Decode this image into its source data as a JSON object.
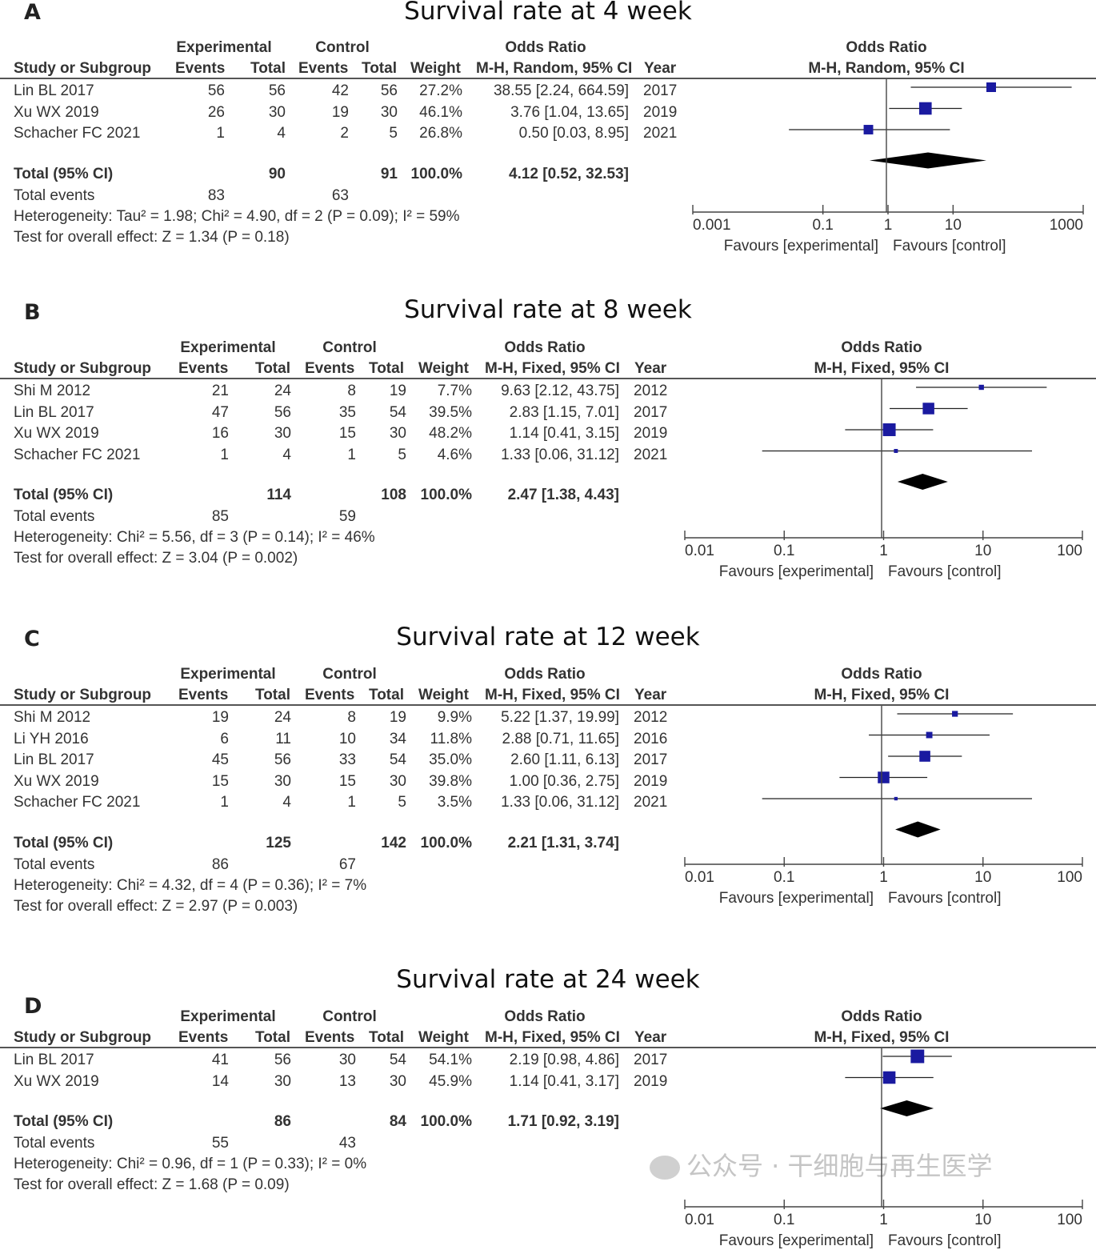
{
  "chart_data": [
    {
      "type": "forest",
      "letter": "A",
      "title": "Survival rate at 4 week",
      "headers": {
        "experimental": "Experimental",
        "control": "Control",
        "odds_ratio": "Odds Ratio",
        "method": "M-H, Random, 95% CI",
        "study": "Study or Subgroup",
        "events": "Events",
        "total": "Total",
        "weight": "Weight",
        "year": "Year",
        "plot_title": "Odds Ratio",
        "plot_method": "M-H, Random, 95% CI"
      },
      "studies": [
        {
          "name": "Lin BL 2017",
          "exp_events": "56",
          "exp_total": "56",
          "ctl_events": "42",
          "ctl_total": "56",
          "weight": "27.2%",
          "ci_text": "38.55 [2.24, 664.59]",
          "year": "2017",
          "or": 38.55,
          "lo": 2.24,
          "hi": 664.59
        },
        {
          "name": "Xu WX 2019",
          "exp_events": "26",
          "exp_total": "30",
          "ctl_events": "19",
          "ctl_total": "30",
          "weight": "46.1%",
          "ci_text": "3.76 [1.04, 13.65]",
          "year": "2019",
          "or": 3.76,
          "lo": 1.04,
          "hi": 13.65
        },
        {
          "name": "Schacher FC 2021",
          "exp_events": "1",
          "exp_total": "4",
          "ctl_events": "2",
          "ctl_total": "5",
          "weight": "26.8%",
          "ci_text": "0.50 [0.03, 8.95]",
          "year": "2021",
          "or": 0.5,
          "lo": 0.03,
          "hi": 8.95
        }
      ],
      "total": {
        "label": "Total (95% CI)",
        "exp_total": "90",
        "ctl_total": "91",
        "weight": "100.0%",
        "ci_text": "4.12 [0.52, 32.53]",
        "or": 4.12,
        "lo": 0.52,
        "hi": 32.53
      },
      "total_events": {
        "label": "Total events",
        "exp": "83",
        "ctl": "63"
      },
      "heterogeneity": "Heterogeneity: Tau² = 1.98; Chi² = 4.90, df = 2 (P = 0.09); I² = 59%",
      "overall_effect": "Test for overall effect: Z = 1.34 (P = 0.18)",
      "axis": {
        "scale": "log",
        "min": 0.001,
        "max": 1000,
        "ticks": [
          0.001,
          0.1,
          1,
          10,
          1000
        ],
        "tick_labels": [
          "0.001",
          "0.1",
          "1",
          "10",
          "1000"
        ],
        "favours_left": "Favours [experimental]",
        "favours_right": "Favours [control]"
      }
    },
    {
      "type": "forest",
      "letter": "B",
      "title": "Survival rate at 8 week",
      "headers": {
        "experimental": "Experimental",
        "control": "Control",
        "odds_ratio": "Odds Ratio",
        "method": "M-H, Fixed, 95% CI",
        "study": "Study or Subgroup",
        "events": "Events",
        "total": "Total",
        "weight": "Weight",
        "year": "Year",
        "plot_title": "Odds Ratio",
        "plot_method": "M-H, Fixed, 95% CI"
      },
      "studies": [
        {
          "name": "Shi M 2012",
          "exp_events": "21",
          "exp_total": "24",
          "ctl_events": "8",
          "ctl_total": "19",
          "weight": "7.7%",
          "ci_text": "9.63 [2.12, 43.75]",
          "year": "2012",
          "or": 9.63,
          "lo": 2.12,
          "hi": 43.75
        },
        {
          "name": "Lin BL 2017",
          "exp_events": "47",
          "exp_total": "56",
          "ctl_events": "35",
          "ctl_total": "54",
          "weight": "39.5%",
          "ci_text": "2.83 [1.15, 7.01]",
          "year": "2017",
          "or": 2.83,
          "lo": 1.15,
          "hi": 7.01
        },
        {
          "name": "Xu WX 2019",
          "exp_events": "16",
          "exp_total": "30",
          "ctl_events": "15",
          "ctl_total": "30",
          "weight": "48.2%",
          "ci_text": "1.14 [0.41, 3.15]",
          "year": "2019",
          "or": 1.14,
          "lo": 0.41,
          "hi": 3.15
        },
        {
          "name": "Schacher FC 2021",
          "exp_events": "1",
          "exp_total": "4",
          "ctl_events": "1",
          "ctl_total": "5",
          "weight": "4.6%",
          "ci_text": "1.33 [0.06, 31.12]",
          "year": "2021",
          "or": 1.33,
          "lo": 0.06,
          "hi": 31.12
        }
      ],
      "total": {
        "label": "Total (95% CI)",
        "exp_total": "114",
        "ctl_total": "108",
        "weight": "100.0%",
        "ci_text": "2.47 [1.38, 4.43]",
        "or": 2.47,
        "lo": 1.38,
        "hi": 4.43
      },
      "total_events": {
        "label": "Total events",
        "exp": "85",
        "ctl": "59"
      },
      "heterogeneity": "Heterogeneity: Chi² = 5.56, df = 3 (P = 0.14); I² = 46%",
      "overall_effect": "Test for overall effect: Z = 3.04 (P = 0.002)",
      "axis": {
        "scale": "log",
        "min": 0.01,
        "max": 100,
        "ticks": [
          0.01,
          0.1,
          1,
          10,
          100
        ],
        "tick_labels": [
          "0.01",
          "0.1",
          "1",
          "10",
          "100"
        ],
        "favours_left": "Favours [experimental]",
        "favours_right": "Favours [control]"
      }
    },
    {
      "type": "forest",
      "letter": "C",
      "title": "Survival rate at 12 week",
      "headers": {
        "experimental": "Experimental",
        "control": "Control",
        "odds_ratio": "Odds Ratio",
        "method": "M-H, Fixed, 95% CI",
        "study": "Study or Subgroup",
        "events": "Events",
        "total": "Total",
        "weight": "Weight",
        "year": "Year",
        "plot_title": "Odds Ratio",
        "plot_method": "M-H, Fixed, 95% CI"
      },
      "studies": [
        {
          "name": "Shi M 2012",
          "exp_events": "19",
          "exp_total": "24",
          "ctl_events": "8",
          "ctl_total": "19",
          "weight": "9.9%",
          "ci_text": "5.22 [1.37, 19.99]",
          "year": "2012",
          "or": 5.22,
          "lo": 1.37,
          "hi": 19.99
        },
        {
          "name": "Li YH 2016",
          "exp_events": "6",
          "exp_total": "11",
          "ctl_events": "10",
          "ctl_total": "34",
          "weight": "11.8%",
          "ci_text": "2.88 [0.71, 11.65]",
          "year": "2016",
          "or": 2.88,
          "lo": 0.71,
          "hi": 11.65
        },
        {
          "name": "Lin BL 2017",
          "exp_events": "45",
          "exp_total": "56",
          "ctl_events": "33",
          "ctl_total": "54",
          "weight": "35.0%",
          "ci_text": "2.60 [1.11, 6.13]",
          "year": "2017",
          "or": 2.6,
          "lo": 1.11,
          "hi": 6.13
        },
        {
          "name": "Xu WX 2019",
          "exp_events": "15",
          "exp_total": "30",
          "ctl_events": "15",
          "ctl_total": "30",
          "weight": "39.8%",
          "ci_text": "1.00 [0.36, 2.75]",
          "year": "2019",
          "or": 1.0,
          "lo": 0.36,
          "hi": 2.75
        },
        {
          "name": "Schacher FC 2021",
          "exp_events": "1",
          "exp_total": "4",
          "ctl_events": "1",
          "ctl_total": "5",
          "weight": "3.5%",
          "ci_text": "1.33 [0.06, 31.12]",
          "year": "2021",
          "or": 1.33,
          "lo": 0.06,
          "hi": 31.12
        }
      ],
      "total": {
        "label": "Total (95% CI)",
        "exp_total": "125",
        "ctl_total": "142",
        "weight": "100.0%",
        "ci_text": "2.21 [1.31, 3.74]",
        "or": 2.21,
        "lo": 1.31,
        "hi": 3.74
      },
      "total_events": {
        "label": "Total events",
        "exp": "86",
        "ctl": "67"
      },
      "heterogeneity": "Heterogeneity: Chi² = 4.32, df = 4 (P = 0.36); I² = 7%",
      "overall_effect": "Test for overall effect: Z = 2.97 (P = 0.003)",
      "axis": {
        "scale": "log",
        "min": 0.01,
        "max": 100,
        "ticks": [
          0.01,
          0.1,
          1,
          10,
          100
        ],
        "tick_labels": [
          "0.01",
          "0.1",
          "1",
          "10",
          "100"
        ],
        "favours_left": "Favours [experimental]",
        "favours_right": "Favours [control]"
      }
    },
    {
      "type": "forest",
      "letter": "D",
      "title": "Survival rate at 24 week",
      "headers": {
        "experimental": "Experimental",
        "control": "Control",
        "odds_ratio": "Odds Ratio",
        "method": "M-H, Fixed, 95% CI",
        "study": "Study or Subgroup",
        "events": "Events",
        "total": "Total",
        "weight": "Weight",
        "year": "Year",
        "plot_title": "Odds Ratio",
        "plot_method": "M-H, Fixed, 95% CI"
      },
      "studies": [
        {
          "name": "Lin BL 2017",
          "exp_events": "41",
          "exp_total": "56",
          "ctl_events": "30",
          "ctl_total": "54",
          "weight": "54.1%",
          "ci_text": "2.19 [0.98, 4.86]",
          "year": "2017",
          "or": 2.19,
          "lo": 0.98,
          "hi": 4.86
        },
        {
          "name": "Xu WX 2019",
          "exp_events": "14",
          "exp_total": "30",
          "ctl_events": "13",
          "ctl_total": "30",
          "weight": "45.9%",
          "ci_text": "1.14 [0.41, 3.17]",
          "year": "2019",
          "or": 1.14,
          "lo": 0.41,
          "hi": 3.17
        }
      ],
      "total": {
        "label": "Total (95% CI)",
        "exp_total": "86",
        "ctl_total": "84",
        "weight": "100.0%",
        "ci_text": "1.71 [0.92, 3.19]",
        "or": 1.71,
        "lo": 0.92,
        "hi": 3.19
      },
      "total_events": {
        "label": "Total events",
        "exp": "55",
        "ctl": "43"
      },
      "heterogeneity": "Heterogeneity: Chi² = 0.96, df = 1 (P = 0.33); I² = 0%",
      "overall_effect": "Test for overall effect: Z = 1.68 (P = 0.09)",
      "axis": {
        "scale": "log",
        "min": 0.01,
        "max": 100,
        "ticks": [
          0.01,
          0.1,
          1,
          10,
          100
        ],
        "tick_labels": [
          "0.01",
          "0.1",
          "1",
          "10",
          "100"
        ],
        "favours_left": "Favours [experimental]",
        "favours_right": "Favours [control]"
      }
    }
  ],
  "watermark": "公众号 · 干细胞与再生医学",
  "colors": {
    "marker": "#1a1aa0",
    "diamond": "#000000",
    "line": "#222222",
    "text": "#333333"
  }
}
